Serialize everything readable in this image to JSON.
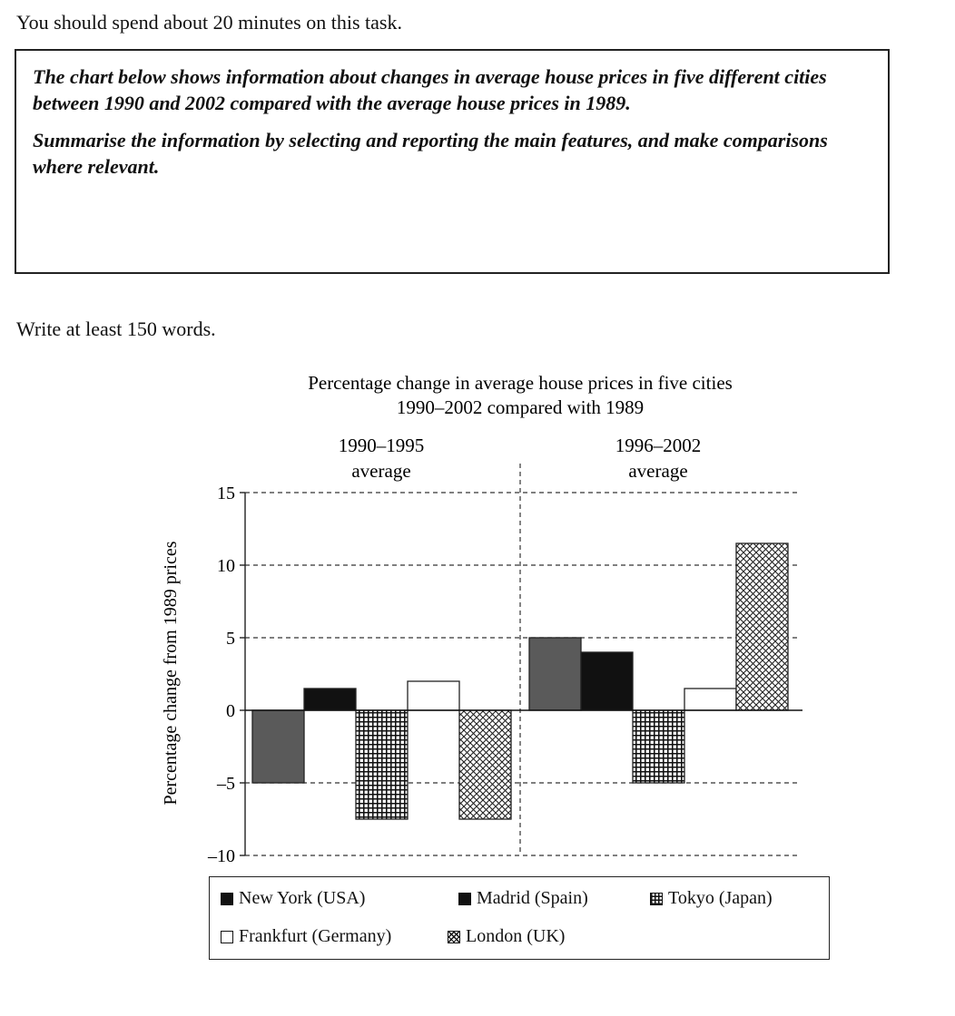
{
  "instructions": {
    "time_note": "You should spend about 20 minutes on this task.",
    "task_text_1": "The chart below shows information about changes in average house prices in five different cities between 1990 and 2002 compared with the average house prices in 1989.",
    "task_text_2": "Summarise the information by selecting and reporting the main features, and make comparisons where relevant.",
    "word_count_note": "Write at least 150 words."
  },
  "chart_data": {
    "type": "bar",
    "title_line1": "Percentage change in average house prices in five cities",
    "title_line2": "1990–2002 compared with 1989",
    "categories": [
      "1990–1995 average",
      "1996–2002 average"
    ],
    "category_labels": [
      {
        "line1": "1990–1995",
        "line2": "average"
      },
      {
        "line1": "1996–2002",
        "line2": "average"
      }
    ],
    "ylabel": "Percentage change from 1989 prices",
    "xlabel": "",
    "ylim": [
      -10,
      15
    ],
    "yticks": [
      15,
      10,
      5,
      0,
      -5,
      -10
    ],
    "ytick_labels": [
      "15",
      "10",
      "5",
      "0",
      "–5",
      "–10"
    ],
    "grid": true,
    "series": [
      {
        "name": "New York (USA)",
        "pattern": "dark-grey",
        "values": [
          -5,
          5
        ]
      },
      {
        "name": "Madrid (Spain)",
        "pattern": "solid-black",
        "values": [
          1.5,
          4
        ]
      },
      {
        "name": "Tokyo (Japan)",
        "pattern": "grid",
        "values": [
          -7.5,
          -5
        ]
      },
      {
        "name": "Frankfurt (Germany)",
        "pattern": "open",
        "values": [
          2,
          1.5
        ]
      },
      {
        "name": "London (UK)",
        "pattern": "cross-hatch",
        "values": [
          -7.5,
          11.5
        ]
      }
    ],
    "legend": {
      "placement": "bottom",
      "items": [
        {
          "label": "New York (USA)",
          "symbol": "■"
        },
        {
          "label": "Madrid (Spain)",
          "symbol": "■"
        },
        {
          "label": "Tokyo (Japan)",
          "symbol": "⊞"
        },
        {
          "label": "Frankfurt (Germany)",
          "symbol": "□"
        },
        {
          "label": "London (UK)",
          "symbol": "⊠"
        }
      ]
    },
    "colors": {
      "dark_grey": "#5a5a5a",
      "black": "#111111",
      "line": "#222222"
    }
  }
}
